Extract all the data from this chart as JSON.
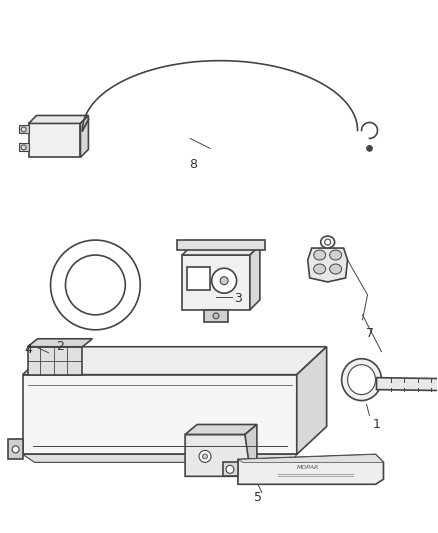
{
  "bg_color": "#ffffff",
  "line_color": "#444444",
  "fig_width": 4.38,
  "fig_height": 5.33,
  "dpi": 100,
  "label_fontsize": 9,
  "label_color": "#333333"
}
